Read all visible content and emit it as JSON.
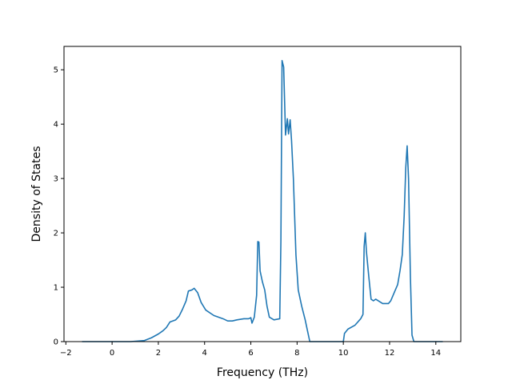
{
  "chart_data": {
    "type": "line",
    "title": "",
    "xlabel": "Frequency (THz)",
    "ylabel": "Density of States",
    "xlim": [
      -2.08,
      15.08
    ],
    "ylim": [
      0,
      5.43
    ],
    "xticks": [
      -2,
      0,
      2,
      4,
      6,
      8,
      10,
      12,
      14
    ],
    "yticks": [
      0,
      1,
      2,
      3,
      4,
      5
    ],
    "grid": false,
    "legend": "none",
    "color": "#1f77b4",
    "series": [
      {
        "x": [
          -1.3,
          0.0,
          0.8,
          1.4,
          1.7,
          2.0,
          2.2,
          2.35,
          2.5,
          2.75,
          2.9,
          3.05,
          3.2,
          3.3,
          3.45,
          3.55,
          3.7,
          3.85,
          4.05,
          4.4,
          4.8,
          5.0,
          5.2,
          5.4,
          5.7,
          5.9,
          6.0,
          6.05,
          6.15,
          6.25,
          6.3,
          6.35,
          6.4,
          6.5,
          6.6,
          6.7,
          6.8,
          7.0,
          7.25,
          7.3,
          7.35,
          7.42,
          7.5,
          7.58,
          7.63,
          7.7,
          7.76,
          7.84,
          7.95,
          8.05,
          8.2,
          8.35,
          8.45,
          8.55,
          10.0,
          10.05,
          10.2,
          10.5,
          10.75,
          10.85,
          10.9,
          10.95,
          11.0,
          11.1,
          11.2,
          11.3,
          11.4,
          11.7,
          11.95,
          12.05,
          12.2,
          12.35,
          12.45,
          12.55,
          12.63,
          12.7,
          12.76,
          12.82,
          12.9,
          12.97,
          13.05,
          13.5,
          14.3
        ],
        "values": [
          0.0,
          0.0,
          0.0,
          0.02,
          0.07,
          0.14,
          0.2,
          0.26,
          0.36,
          0.4,
          0.47,
          0.6,
          0.75,
          0.93,
          0.95,
          0.98,
          0.9,
          0.72,
          0.58,
          0.48,
          0.42,
          0.38,
          0.38,
          0.4,
          0.42,
          0.42,
          0.44,
          0.34,
          0.45,
          0.85,
          1.84,
          1.83,
          1.3,
          1.1,
          0.95,
          0.65,
          0.45,
          0.4,
          0.42,
          1.85,
          5.17,
          5.05,
          3.8,
          4.1,
          3.82,
          4.08,
          3.7,
          3.0,
          1.6,
          0.95,
          0.65,
          0.4,
          0.2,
          0.0,
          0.0,
          0.15,
          0.23,
          0.3,
          0.42,
          0.5,
          1.75,
          2.0,
          1.65,
          1.2,
          0.78,
          0.75,
          0.78,
          0.7,
          0.7,
          0.75,
          0.9,
          1.05,
          1.3,
          1.6,
          2.3,
          3.2,
          3.6,
          3.0,
          1.2,
          0.12,
          0.0,
          0.0,
          0.0
        ]
      }
    ]
  }
}
